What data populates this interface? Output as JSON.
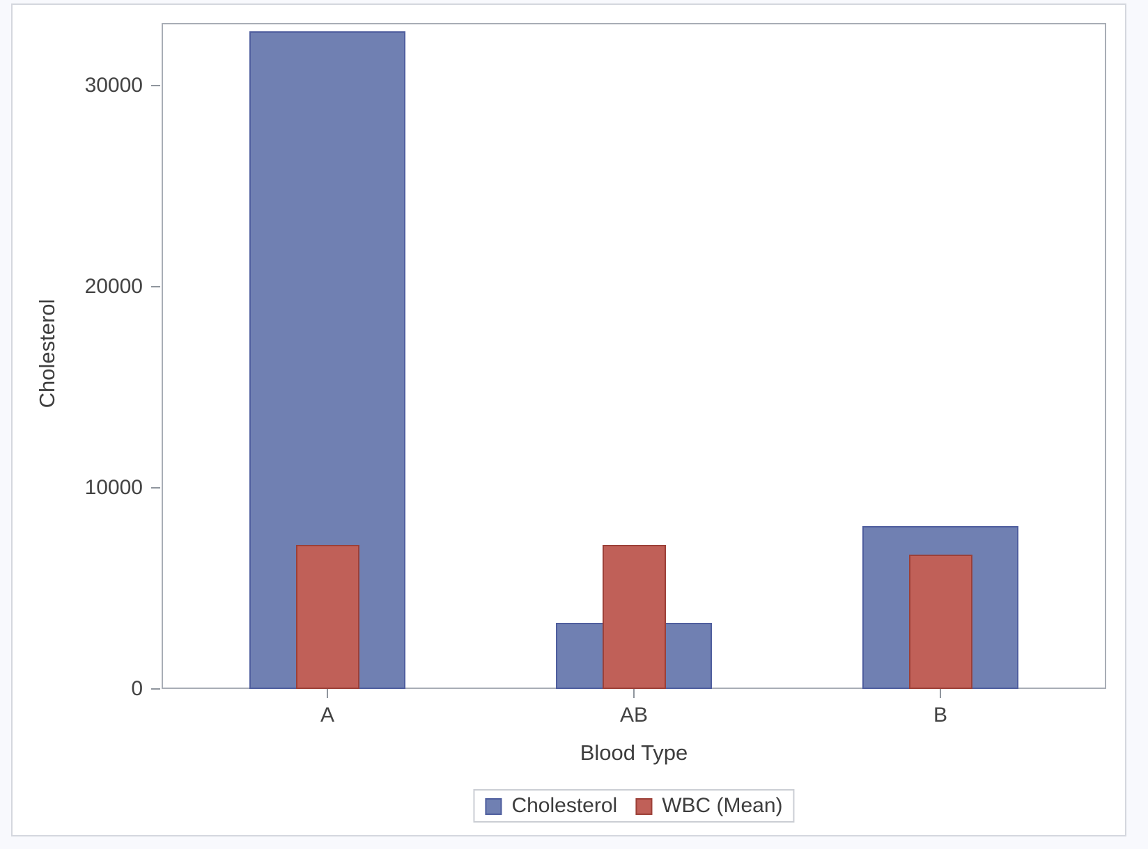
{
  "chart_data": {
    "type": "bar",
    "categories": [
      "A",
      "AB",
      "B"
    ],
    "series": [
      {
        "name": "Cholesterol",
        "values": [
          32700,
          3300,
          8100
        ],
        "fill": "#7080B2",
        "stroke": "#4F5E9E"
      },
      {
        "name": "WBC (Mean)",
        "values": [
          7160,
          7160,
          6680
        ],
        "fill": "#C06058",
        "stroke": "#9C4038"
      }
    ],
    "title": "",
    "xlabel": "Blood Type",
    "ylabel": "Cholesterol",
    "ylim": [
      0,
      33100
    ],
    "yticks": [
      0,
      10000,
      20000,
      30000
    ],
    "ytick_labels": [
      "0",
      "10000",
      "20000",
      "30000"
    ],
    "grid": false,
    "legend_position": "bottom-center",
    "legend_entries": [
      "Cholesterol",
      "WBC (Mean)"
    ],
    "overlay_note": "WBC (Mean) bars drawn narrower, overlaid in front of Cholesterol bars"
  },
  "colors": {
    "page_background": "#F8F9FD",
    "figure_background": "#FFFFFF",
    "figure_border": "#D4D7DE",
    "axis_frame": "#A8ADB5",
    "tick_mark": "#8F959D",
    "label_text": "#3D3D3D",
    "legend_border": "#CBCED4"
  }
}
